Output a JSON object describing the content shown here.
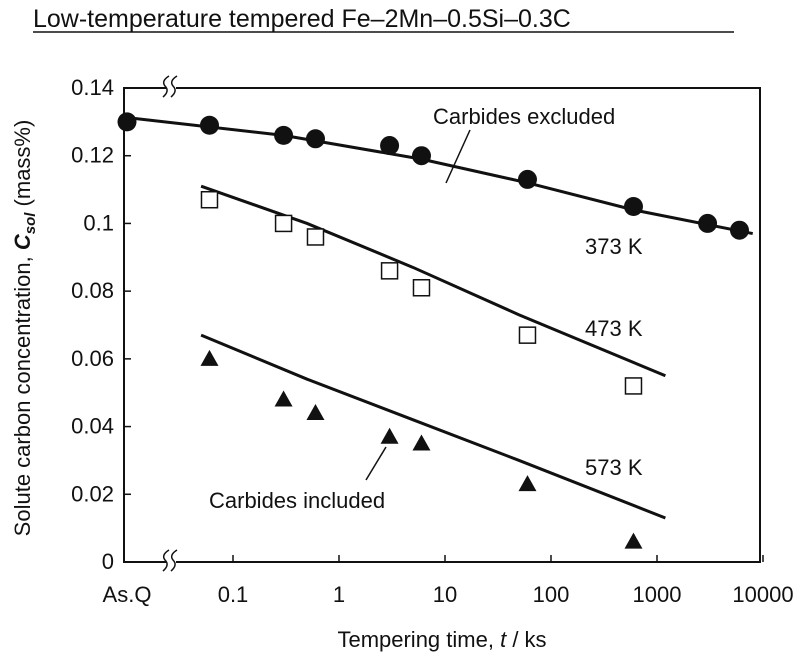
{
  "chart_data": {
    "type": "scatter",
    "title": "Low-temperature tempered Fe–2Mn–0.5Si–0.3C",
    "xlabel_prefix": "Tempering time, ",
    "xlabel_var": "t",
    "xlabel_suffix": " / ks",
    "ylabel_prefix": "Solute carbon concentration, ",
    "ylabel_var": "C",
    "ylabel_sub": "sol",
    "ylabel_suffix": " (mass%)",
    "x_scale": "log",
    "xlim": [
      0.03,
      10000
    ],
    "ylim": [
      0,
      0.14
    ],
    "x_categorical_tick": "As.Q",
    "x_ticks": [
      0.1,
      1,
      10,
      100,
      1000,
      10000
    ],
    "x_tick_labels": [
      "0.1",
      "1",
      "10",
      "100",
      "1000",
      "10000"
    ],
    "y_ticks": [
      0,
      0.02,
      0.04,
      0.06,
      0.08,
      0.1,
      0.12,
      0.14
    ],
    "y_tick_labels": [
      "0",
      "0.02",
      "0.04",
      "0.06",
      "0.08",
      "0.1",
      "0.12",
      "0.14"
    ],
    "axis_break_marker": "//",
    "series": [
      {
        "name": "373 K",
        "marker": "filled-circle",
        "asq_value": 0.13,
        "points": [
          {
            "x": 0.06,
            "y": 0.129
          },
          {
            "x": 0.3,
            "y": 0.126
          },
          {
            "x": 0.6,
            "y": 0.125
          },
          {
            "x": 3,
            "y": 0.123
          },
          {
            "x": 6,
            "y": 0.12
          },
          {
            "x": 60,
            "y": 0.113
          },
          {
            "x": 600,
            "y": 0.105
          },
          {
            "x": 3000,
            "y": 0.1
          },
          {
            "x": 6000,
            "y": 0.098
          }
        ],
        "model_line": [
          {
            "x": 0.011,
            "y": 0.131
          },
          {
            "x": 0.3,
            "y": 0.126
          },
          {
            "x": 6,
            "y": 0.119
          },
          {
            "x": 60,
            "y": 0.112
          },
          {
            "x": 600,
            "y": 0.104
          },
          {
            "x": 8000,
            "y": 0.097
          }
        ]
      },
      {
        "name": "473 K",
        "marker": "open-square",
        "points": [
          {
            "x": 0.06,
            "y": 0.107
          },
          {
            "x": 0.3,
            "y": 0.1
          },
          {
            "x": 0.6,
            "y": 0.096
          },
          {
            "x": 3,
            "y": 0.086
          },
          {
            "x": 6,
            "y": 0.081
          },
          {
            "x": 60,
            "y": 0.067
          },
          {
            "x": 600,
            "y": 0.052
          }
        ],
        "model_line": [
          {
            "x": 0.05,
            "y": 0.111
          },
          {
            "x": 0.5,
            "y": 0.1
          },
          {
            "x": 5,
            "y": 0.087
          },
          {
            "x": 50,
            "y": 0.073
          },
          {
            "x": 1200,
            "y": 0.055
          }
        ]
      },
      {
        "name": "573 K",
        "marker": "filled-triangle",
        "points": [
          {
            "x": 0.06,
            "y": 0.06
          },
          {
            "x": 0.3,
            "y": 0.048
          },
          {
            "x": 0.6,
            "y": 0.044
          },
          {
            "x": 3,
            "y": 0.037
          },
          {
            "x": 6,
            "y": 0.035
          },
          {
            "x": 60,
            "y": 0.023
          },
          {
            "x": 600,
            "y": 0.006
          }
        ],
        "model_line": [
          {
            "x": 0.05,
            "y": 0.067
          },
          {
            "x": 0.5,
            "y": 0.054
          },
          {
            "x": 5,
            "y": 0.042
          },
          {
            "x": 50,
            "y": 0.03
          },
          {
            "x": 1200,
            "y": 0.013
          }
        ]
      }
    ],
    "annotations": {
      "carbides_excluded": "Carbides excluded",
      "carbides_included": "Carbides included",
      "label_373": "373 K",
      "label_473": "473 K",
      "label_573": "573 K"
    }
  }
}
